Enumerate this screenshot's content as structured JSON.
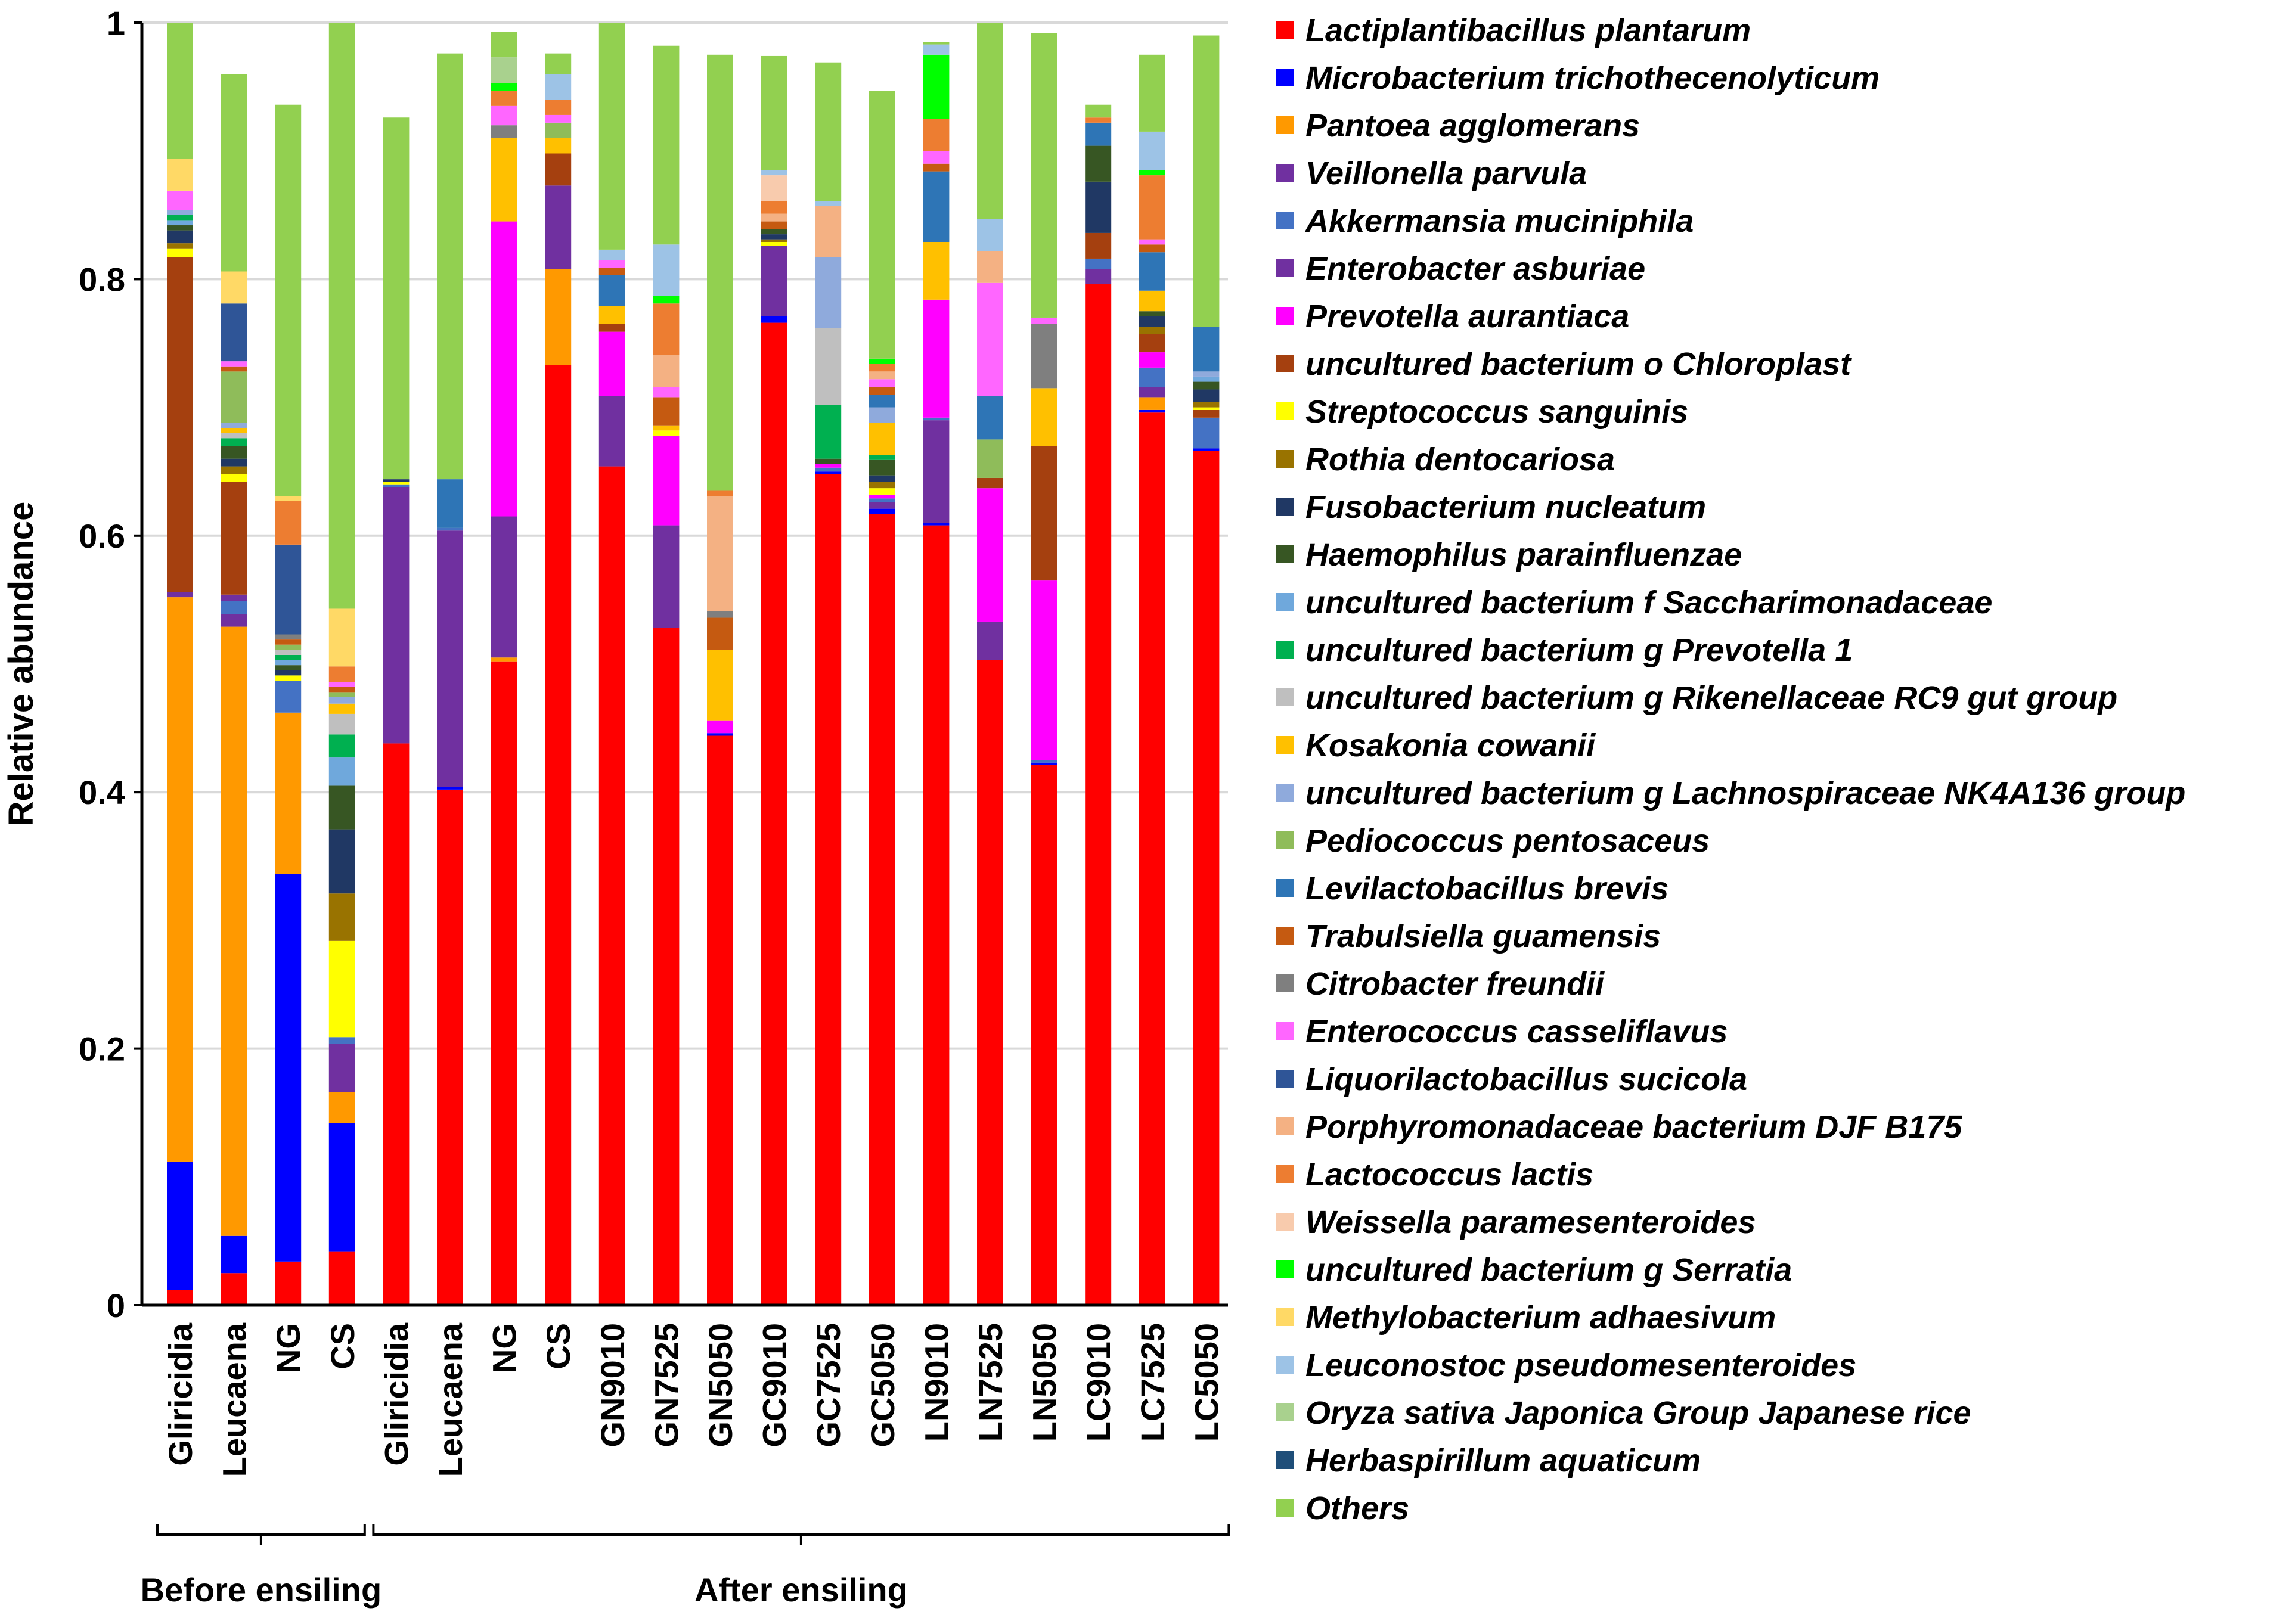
{
  "chart_data": {
    "type": "bar",
    "stacked": true,
    "ylabel": "Relative abundance",
    "ylim": [
      0,
      1
    ],
    "yticks": [
      0,
      0.2,
      0.4,
      0.6,
      0.8,
      1
    ],
    "ytick_labels": [
      "0",
      "0.2",
      "0.4",
      "0.6",
      "0.8",
      "1"
    ],
    "grid": true,
    "legend_position": "right",
    "categories": [
      "Gliricidia",
      "Leucaena",
      "NG",
      "CS",
      "Gliricidia",
      "Leucaena",
      "NG",
      "CS",
      "GN9010",
      "GN7525",
      "GN5050",
      "GC9010",
      "GC7525",
      "GC5050",
      "LN9010",
      "LN7525",
      "LN5050",
      "LC9010",
      "LC7525",
      "LC5050"
    ],
    "groups": [
      {
        "label": "Before ensiling",
        "start": 0,
        "end": 3
      },
      {
        "label": "After ensiling",
        "start": 4,
        "end": 19
      }
    ],
    "series": [
      {
        "name": "Lactiplantibacillus plantarum",
        "color": "#ff0000",
        "values": [
          0.012,
          0.025,
          0.034,
          0.042,
          0.438,
          0.402,
          0.502,
          0.733,
          0.654,
          0.528,
          0.444,
          0.766,
          0.648,
          0.617,
          0.608,
          0.503,
          0.421,
          0.796,
          0.696,
          0.666
        ]
      },
      {
        "name": "Microbacterium trichothecenolyticum",
        "color": "#0000ff",
        "values": [
          0.1,
          0.029,
          0.302,
          0.1,
          0.0,
          0.002,
          0.0,
          0.0,
          0.0,
          0.0,
          0.002,
          0.005,
          0.002,
          0.004,
          0.002,
          0.0,
          0.002,
          0.0,
          0.002,
          0.002
        ]
      },
      {
        "name": "Pantoea agglomerans",
        "color": "#ff9900",
        "values": [
          0.44,
          0.475,
          0.126,
          0.024,
          0.0,
          0.0,
          0.003,
          0.075,
          0.0,
          0.0,
          0.0,
          0.0,
          0.0,
          0.0,
          0.0,
          0.0,
          0.0,
          0.0,
          0.01,
          0.0
        ]
      },
      {
        "name": "Veillonella parvula",
        "color": "#7030a0",
        "values": [
          0.004,
          0.01,
          0.0,
          0.038,
          0.2,
          0.2,
          0.11,
          0.065,
          0.055,
          0.08,
          0.0,
          0.055,
          0.0,
          0.005,
          0.08,
          0.03,
          0.0,
          0.012,
          0.008,
          0.0
        ]
      },
      {
        "name": "Akkermansia muciniphila",
        "color": "#4472c4",
        "values": [
          0.0,
          0.01,
          0.025,
          0.005,
          0.002,
          0.002,
          0.0,
          0.0,
          0.0,
          0.0,
          0.0,
          0.0,
          0.003,
          0.003,
          0.002,
          0.0,
          0.002,
          0.008,
          0.015,
          0.024
        ]
      },
      {
        "name": "Enterobacter asburiae",
        "color": "#7030a0",
        "values": [
          0.0,
          0.005,
          0.0,
          0.0,
          0.0,
          0.0,
          0.0,
          0.0,
          0.0,
          0.0,
          0.0,
          0.0,
          0.0,
          0.0,
          0.0,
          0.0,
          0.0,
          0.0,
          0.0,
          0.0
        ]
      },
      {
        "name": "Prevotella aurantiaca",
        "color": "#ff00ff",
        "values": [
          0.0,
          0.0,
          0.0,
          0.0,
          0.0,
          0.0,
          0.23,
          0.0,
          0.05,
          0.07,
          0.01,
          0.0,
          0.003,
          0.003,
          0.092,
          0.104,
          0.14,
          0.0,
          0.012,
          0.0
        ]
      },
      {
        "name": "uncultured bacterium o Chloroplast",
        "color": "#a5400f",
        "values": [
          0.261,
          0.088,
          0.0,
          0.0,
          0.0,
          0.0,
          0.0,
          0.025,
          0.006,
          0.0,
          0.0,
          0.0,
          0.0,
          0.0,
          0.0,
          0.008,
          0.105,
          0.02,
          0.014,
          0.006
        ]
      },
      {
        "name": "Streptococcus sanguinis",
        "color": "#ffff00",
        "values": [
          0.007,
          0.006,
          0.004,
          0.075,
          0.002,
          0.0,
          0.0,
          0.0,
          0.0,
          0.004,
          0.0,
          0.003,
          0.0,
          0.005,
          0.0,
          0.0,
          0.0,
          0.0,
          0.0,
          0.002
        ]
      },
      {
        "name": "Rothia dentocariosa",
        "color": "#997300",
        "values": [
          0.004,
          0.006,
          0.0,
          0.037,
          0.0,
          0.0,
          0.0,
          0.0,
          0.0,
          0.0,
          0.0,
          0.002,
          0.0,
          0.005,
          0.0,
          0.0,
          0.0,
          0.0,
          0.006,
          0.004
        ]
      },
      {
        "name": "Fusobacterium nucleatum",
        "color": "#203864",
        "values": [
          0.01,
          0.006,
          0.004,
          0.05,
          0.002,
          0.0,
          0.0,
          0.0,
          0.0,
          0.0,
          0.0,
          0.004,
          0.0,
          0.005,
          0.0,
          0.0,
          0.0,
          0.04,
          0.008,
          0.01
        ]
      },
      {
        "name": "Haemophilus parainfluenzae",
        "color": "#375623",
        "values": [
          0.004,
          0.01,
          0.004,
          0.034,
          0.0,
          0.0,
          0.0,
          0.0,
          0.0,
          0.0,
          0.0,
          0.004,
          0.004,
          0.012,
          0.0,
          0.0,
          0.0,
          0.028,
          0.004,
          0.006
        ]
      },
      {
        "name": "uncultured bacterium f Saccharimonadaceae",
        "color": "#6fa8dc",
        "values": [
          0.004,
          0.0,
          0.004,
          0.022,
          0.0,
          0.0,
          0.0,
          0.0,
          0.0,
          0.0,
          0.0,
          0.0,
          0.0,
          0.0,
          0.0,
          0.0,
          0.0,
          0.0,
          0.0,
          0.004
        ]
      },
      {
        "name": "uncultured bacterium g Prevotella 1",
        "color": "#00b050",
        "values": [
          0.004,
          0.006,
          0.004,
          0.018,
          0.0,
          0.0,
          0.0,
          0.0,
          0.0,
          0.0,
          0.0,
          0.0,
          0.042,
          0.004,
          0.0,
          0.0,
          0.0,
          0.0,
          0.0,
          0.0
        ]
      },
      {
        "name": "uncultured bacterium g Rikenellaceae RC9 gut group",
        "color": "#bfbfbf",
        "values": [
          0.0,
          0.004,
          0.004,
          0.016,
          0.0,
          0.0,
          0.0,
          0.0,
          0.0,
          0.0,
          0.0,
          0.0,
          0.06,
          0.0,
          0.0,
          0.0,
          0.0,
          0.0,
          0.0,
          0.0
        ]
      },
      {
        "name": "Kosakonia cowanii",
        "color": "#ffc000",
        "values": [
          0.0,
          0.004,
          0.0,
          0.008,
          0.0,
          0.0,
          0.065,
          0.012,
          0.014,
          0.004,
          0.055,
          0.0,
          0.0,
          0.025,
          0.045,
          0.0,
          0.045,
          0.0,
          0.016,
          0.0
        ]
      },
      {
        "name": "uncultured bacterium g Lachnospiraceae NK4A136 group",
        "color": "#8faadc",
        "values": [
          0.004,
          0.004,
          0.0,
          0.005,
          0.0,
          0.0,
          0.0,
          0.0,
          0.0,
          0.0,
          0.0,
          0.0,
          0.055,
          0.012,
          0.0,
          0.0,
          0.0,
          0.0,
          0.0,
          0.004
        ]
      },
      {
        "name": "Pediococcus pentosaceus",
        "color": "#8fbc5a",
        "values": [
          0.0,
          0.04,
          0.004,
          0.004,
          0.0,
          0.0,
          0.0,
          0.012,
          0.0,
          0.0,
          0.0,
          0.0,
          0.0,
          0.0,
          0.0,
          0.03,
          0.0,
          0.0,
          0.0,
          0.0
        ]
      },
      {
        "name": "Levilactobacillus brevis",
        "color": "#2e75b6",
        "values": [
          0.0,
          0.0,
          0.0,
          0.0,
          0.0,
          0.038,
          0.0,
          0.0,
          0.024,
          0.0,
          0.0,
          0.0,
          0.0,
          0.01,
          0.055,
          0.034,
          0.0,
          0.018,
          0.03,
          0.035
        ]
      },
      {
        "name": "Trabulsiella guamensis",
        "color": "#c55a11",
        "values": [
          0.0,
          0.004,
          0.004,
          0.004,
          0.0,
          0.0,
          0.0,
          0.0,
          0.006,
          0.022,
          0.025,
          0.006,
          0.0,
          0.006,
          0.006,
          0.0,
          0.0,
          0.0,
          0.006,
          0.0
        ]
      },
      {
        "name": "Citrobacter freundii",
        "color": "#7f7f7f",
        "values": [
          0.0,
          0.0,
          0.004,
          0.0,
          0.0,
          0.0,
          0.01,
          0.0,
          0.0,
          0.0,
          0.005,
          0.0,
          0.0,
          0.0,
          0.0,
          0.0,
          0.05,
          0.0,
          0.0,
          0.0
        ]
      },
      {
        "name": "Enterococcus casseliflavus",
        "color": "#ff66ff",
        "values": [
          0.015,
          0.004,
          0.0,
          0.004,
          0.0,
          0.0,
          0.015,
          0.006,
          0.006,
          0.008,
          0.0,
          0.0,
          0.0,
          0.006,
          0.01,
          0.088,
          0.005,
          0.0,
          0.004,
          0.0
        ]
      },
      {
        "name": "Liquorilactobacillus sucicola",
        "color": "#2f5597",
        "values": [
          0.0,
          0.045,
          0.07,
          0.0,
          0.0,
          0.0,
          0.0,
          0.0,
          0.0,
          0.0,
          0.0,
          0.0,
          0.0,
          0.0,
          0.0,
          0.0,
          0.0,
          0.0,
          0.0,
          0.0
        ]
      },
      {
        "name": "Porphyromonadaceae bacterium DJF B175",
        "color": "#f4b183",
        "values": [
          0.0,
          0.0,
          0.0,
          0.0,
          0.0,
          0.0,
          0.0,
          0.0,
          0.0,
          0.025,
          0.09,
          0.006,
          0.04,
          0.006,
          0.0,
          0.025,
          0.0,
          0.0,
          0.0,
          0.0
        ]
      },
      {
        "name": "Lactococcus lactis",
        "color": "#ed7d31",
        "values": [
          0.0,
          0.0,
          0.034,
          0.012,
          0.0,
          0.0,
          0.012,
          0.012,
          0.0,
          0.04,
          0.004,
          0.01,
          0.0,
          0.006,
          0.025,
          0.0,
          0.0,
          0.004,
          0.05,
          0.0
        ]
      },
      {
        "name": "Weissella paramesenteroides",
        "color": "#f8cbad",
        "values": [
          0.0,
          0.0,
          0.0,
          0.0,
          0.0,
          0.0,
          0.0,
          0.0,
          0.0,
          0.0,
          0.0,
          0.02,
          0.0,
          0.0,
          0.0,
          0.0,
          0.0,
          0.0,
          0.0,
          0.0
        ]
      },
      {
        "name": "uncultured bacterium g Serratia",
        "color": "#00ff00",
        "values": [
          0.0,
          0.0,
          0.0,
          0.0,
          0.0,
          0.0,
          0.006,
          0.0,
          0.0,
          0.006,
          0.0,
          0.0,
          0.0,
          0.004,
          0.05,
          0.0,
          0.0,
          0.0,
          0.004,
          0.0
        ]
      },
      {
        "name": "Methylobacterium adhaesivum",
        "color": "#ffd966",
        "values": [
          0.025,
          0.025,
          0.004,
          0.045,
          0.0,
          0.0,
          0.0,
          0.0,
          0.0,
          0.0,
          0.0,
          0.0,
          0.0,
          0.0,
          0.0,
          0.0,
          0.0,
          0.0,
          0.0,
          0.0
        ]
      },
      {
        "name": "Leuconostoc pseudomesenteroides",
        "color": "#9dc3e6",
        "values": [
          0.0,
          0.0,
          0.0,
          0.0,
          0.0,
          0.0,
          0.0,
          0.02,
          0.008,
          0.04,
          0.0,
          0.004,
          0.004,
          0.0,
          0.008,
          0.025,
          0.0,
          0.0,
          0.03,
          0.0
        ]
      },
      {
        "name": "Oryza sativa Japonica Group Japanese rice",
        "color": "#a9d18e",
        "values": [
          0.0,
          0.0,
          0.0,
          0.0,
          0.0,
          0.0,
          0.02,
          0.0,
          0.0,
          0.0,
          0.0,
          0.0,
          0.0,
          0.0,
          0.0,
          0.0,
          0.0,
          0.0,
          0.0,
          0.0
        ]
      },
      {
        "name": "Herbaspirillum aquaticum",
        "color": "#1f4e79",
        "values": [
          0.0,
          0.0,
          0.0,
          0.0,
          0.0,
          0.0,
          0.0,
          0.0,
          0.0,
          0.0,
          0.0,
          0.0,
          0.0,
          0.0,
          0.0,
          0.0,
          0.0,
          0.0,
          0.0,
          0.0
        ]
      },
      {
        "name": "Others",
        "color": "#92d050",
        "values": [
          0.106,
          0.154,
          0.305,
          0.457,
          0.282,
          0.332,
          0.02,
          0.016,
          0.177,
          0.155,
          0.34,
          0.089,
          0.108,
          0.209,
          0.002,
          0.155,
          0.222,
          0.01,
          0.06,
          0.227
        ]
      }
    ]
  }
}
